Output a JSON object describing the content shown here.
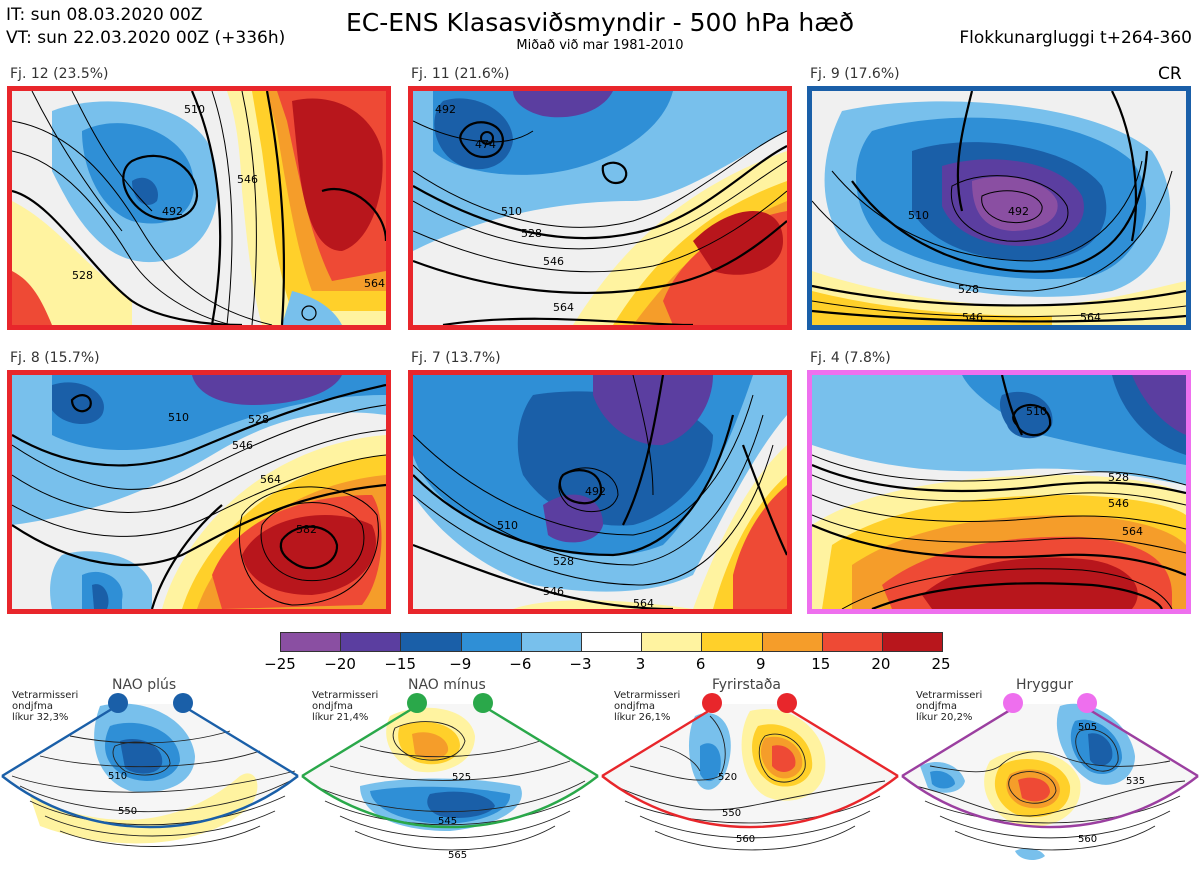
{
  "header": {
    "it_line": "IT: sun 08.03.2020 00Z",
    "vt_line": "VT: sun 22.03.2020 00Z  (+336h)",
    "title": "EC-ENS Klasasviðsmyndir - 500 hPa hæð",
    "subtitle": "Miðað við mar 1981-2010",
    "window": "Flokkunargluggi t+264-360",
    "cr": "CR"
  },
  "colors": {
    "nao_plus": "#1a5fa8",
    "nao_minus": "#2aa84a",
    "blocking": "#e8262b",
    "ridge": "#d65bd6"
  },
  "panels": [
    {
      "label": "Fj. 12 (23.5%)",
      "border": "#e8262b",
      "contours": [
        "492",
        "510",
        "528",
        "546",
        "564"
      ]
    },
    {
      "label": "Fj. 11 (21.6%)",
      "border": "#e8262b",
      "contours": [
        "474",
        "492",
        "510",
        "528",
        "546",
        "564"
      ]
    },
    {
      "label": "Fj. 9 (17.6%)",
      "border": "#1a5fa8",
      "contours": [
        "492",
        "510",
        "528",
        "546",
        "564"
      ]
    },
    {
      "label": "Fj. 8 (15.7%)",
      "border": "#e8262b",
      "contours": [
        "510",
        "528",
        "546",
        "564",
        "582"
      ]
    },
    {
      "label": "Fj. 7 (13.7%)",
      "border": "#e8262b",
      "contours": [
        "492",
        "510",
        "528",
        "546",
        "564"
      ]
    },
    {
      "label": "Fj. 4 (7.8%)",
      "border": "#ee6fee",
      "contours": [
        "510",
        "528",
        "546",
        "564"
      ]
    }
  ],
  "colorbar": {
    "ticks": [
      "−25",
      "−20",
      "−15",
      "−9",
      "−6",
      "−3",
      "3",
      "6",
      "9",
      "15",
      "20",
      "25"
    ],
    "colors": [
      "#8a4fa2",
      "#5b3ea0",
      "#1a5fa8",
      "#2f8fd6",
      "#78c0ec",
      "#ffffff",
      "#fff3a0",
      "#ffd02a",
      "#f59d2a",
      "#ee4a35",
      "#b8161c"
    ]
  },
  "regimes": [
    {
      "title": "NAO plús",
      "note": [
        "Vetrarmisseri",
        "ondjfma",
        "líkur 32,3%"
      ],
      "color": "#1a5fa8",
      "contours": [
        "510",
        "550"
      ]
    },
    {
      "title": "NAO mínus",
      "note": [
        "Vetrarmisseri",
        "ondjfma",
        "líkur 21,4%"
      ],
      "color": "#2aa84a",
      "contours": [
        "525",
        "545",
        "565"
      ]
    },
    {
      "title": "Fyrirstaða",
      "note": [
        "Vetrarmisseri",
        "ondjfma",
        "líkur 26,1%"
      ],
      "color": "#e8262b",
      "contours": [
        "520",
        "550",
        "560"
      ]
    },
    {
      "title": "Hryggur",
      "note": [
        "Vetrarmisseri",
        "ondjfma",
        "líkur 20,2%"
      ],
      "color": "#9b3fa0",
      "contours": [
        "505",
        "535",
        "560"
      ]
    }
  ]
}
